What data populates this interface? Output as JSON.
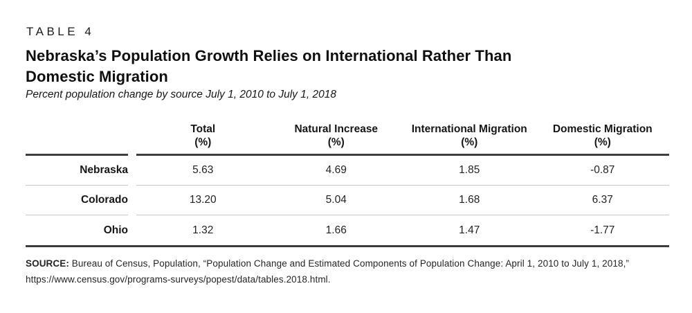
{
  "header": {
    "table_label": "TABLE 4",
    "title_lines": [
      "Nebraska’s Population Growth Relies on International Rather Than",
      "Domestic Migration"
    ],
    "subtitle": "Percent population change by source July 1, 2010 to July 1, 2018"
  },
  "table": {
    "columns": [
      {
        "name": "Total",
        "unit": "(%)"
      },
      {
        "name": "Natural Increase",
        "unit": "(%)"
      },
      {
        "name": "International Migration",
        "unit": "(%)"
      },
      {
        "name": "Domestic Migration",
        "unit": "(%)"
      }
    ],
    "rows": [
      {
        "label": "Nebraska",
        "values": [
          "5.63",
          "4.69",
          "1.85",
          "-0.87"
        ]
      },
      {
        "label": "Colorado",
        "values": [
          "13.20",
          "5.04",
          "1.68",
          "6.37"
        ]
      },
      {
        "label": "Ohio",
        "values": [
          "1.32",
          "1.66",
          "1.47",
          "-1.77"
        ]
      }
    ]
  },
  "source": {
    "label": "SOURCE:",
    "text": " Bureau of Census, Population, “Population Change and Estimated Components of Population Change: April 1, 2010 to July 1, 2018,” https://www.census.gov/programs-surveys/popest/data/tables.2018.html."
  },
  "colors": {
    "background": "#ffffff",
    "text": "#1e1e1e",
    "thick_rule": "#3d3d3d",
    "thin_rule": "#c7c7c7"
  },
  "chart_data": {
    "type": "table",
    "title": "Nebraska’s Population Growth Relies on International Rather Than Domestic Migration",
    "subtitle": "Percent population change by source July 1, 2010 to July 1, 2018",
    "table_label": "TABLE 4",
    "columns": [
      "Total (%)",
      "Natural Increase (%)",
      "International Migration (%)",
      "Domestic Migration (%)"
    ],
    "categories": [
      "Nebraska",
      "Colorado",
      "Ohio"
    ],
    "series": [
      {
        "name": "Total (%)",
        "values": [
          5.63,
          13.2,
          1.32
        ]
      },
      {
        "name": "Natural Increase (%)",
        "values": [
          4.69,
          5.04,
          1.66
        ]
      },
      {
        "name": "International Migration (%)",
        "values": [
          1.85,
          1.68,
          1.47
        ]
      },
      {
        "name": "Domestic Migration (%)",
        "values": [
          -0.87,
          6.37,
          -1.77
        ]
      }
    ],
    "source": "SOURCE: Bureau of Census, Population, “Population Change and Estimated Components of Population Change: April 1, 2010 to July 1, 2018,” https://www.census.gov/programs-surveys/popest/data/tables.2018.html."
  }
}
